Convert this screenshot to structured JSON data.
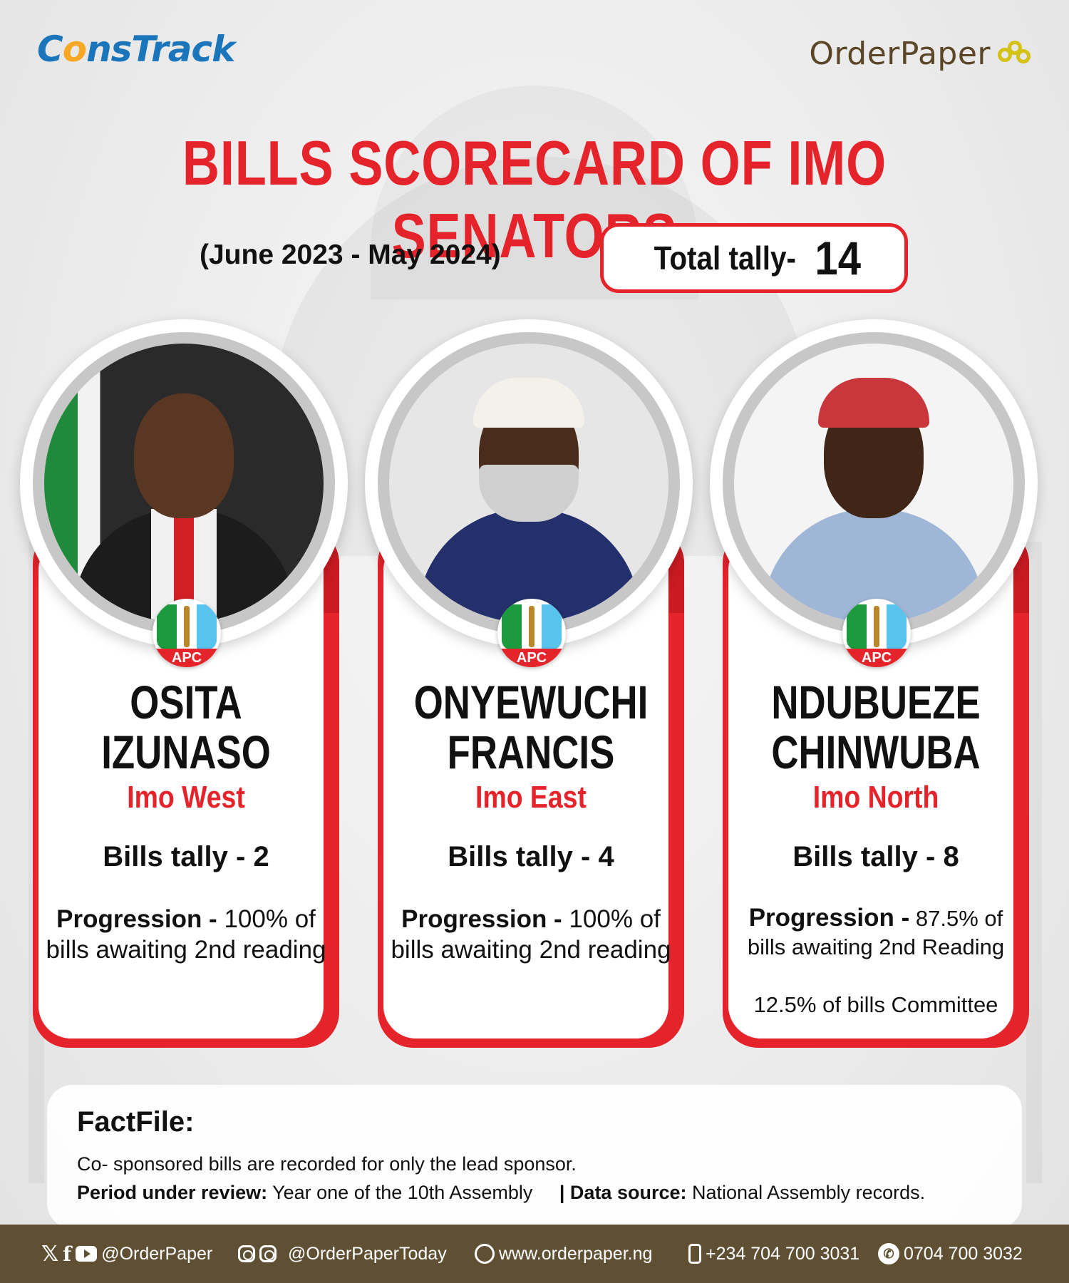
{
  "header": {
    "constrack_logo": "ConsTrack",
    "orderpaper_logo": "OrderPaper",
    "title": "BILLS SCORECARD OF IMO SENATORS",
    "period": "(June 2023 - May 2024)",
    "total_label": "Total tally-",
    "total_value": "14"
  },
  "senators": [
    {
      "first": "OSITA",
      "last": "IZUNASO",
      "region": "Imo West",
      "party": "APC",
      "bills": "Bills tally - 2",
      "prog_label": "Progression -",
      "prog_text": "100% of bills awaiting 2nd reading",
      "prog_extra": ""
    },
    {
      "first": "ONYEWUCHI",
      "last": "FRANCIS",
      "region": "Imo East",
      "party": "APC",
      "bills": "Bills tally - 4",
      "prog_label": "Progression -",
      "prog_text": "100% of bills awaiting 2nd reading",
      "prog_extra": ""
    },
    {
      "first": "NDUBUEZE",
      "last": "CHINWUBA",
      "region": "Imo North",
      "party": "APC",
      "bills": "Bills tally - 8",
      "prog_label": "Progression -",
      "prog_text": "87.5% of bills awaiting 2nd Reading",
      "prog_extra": "12.5% of bills Committee"
    }
  ],
  "factfile": {
    "title": "FactFile:",
    "note": "Co- sponsored bills are recorded for only the lead sponsor.",
    "period_label": "Period under review:",
    "period_value": "Year one of the 10th Assembly",
    "source_label": "| Data source:",
    "source_value": "National Assembly records."
  },
  "footer": {
    "social_1": "@OrderPaper",
    "social_2": "@OrderPaperToday",
    "website": "www.orderpaper.ng",
    "phone": "+234 704 700 3031",
    "whatsapp": "0704 700 3032"
  },
  "colors": {
    "accent_red": "#e4232a",
    "footer_brown": "#5f5033",
    "constrack_blue": "#1b75bb"
  },
  "icons": [
    "x-icon",
    "facebook-icon",
    "youtube-icon",
    "threads-icon",
    "instagram-icon",
    "globe-icon",
    "phone-icon",
    "whatsapp-icon"
  ]
}
